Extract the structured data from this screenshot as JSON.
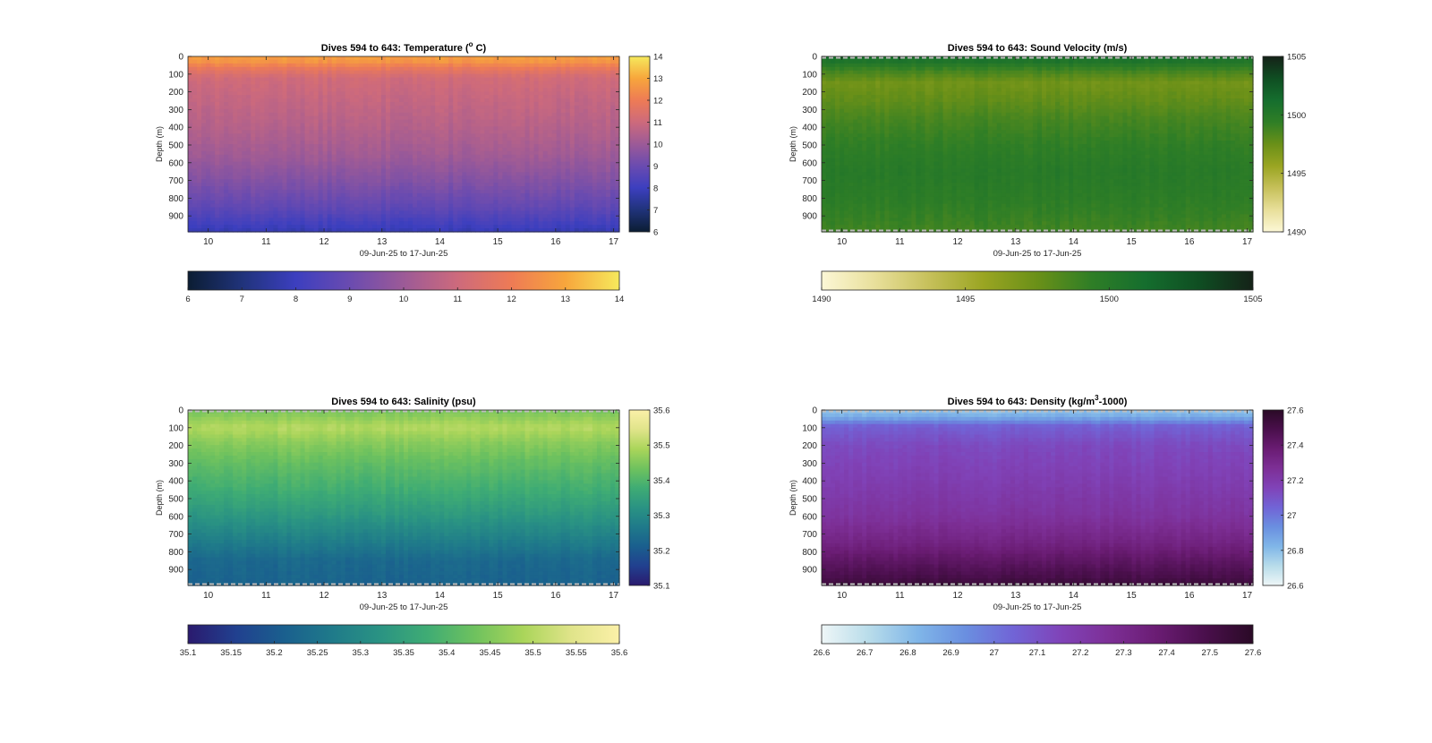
{
  "chart_data": [
    {
      "type": "heatmap",
      "title": "Dives 594 to 643: Temperature (",
      "title_sup": "o",
      "title_suffix": " C)",
      "xlabel": "09-Jun-25 to 17-Jun-25",
      "ylabel": "Depth (m)",
      "x_ticks": [
        "10",
        "11",
        "12",
        "13",
        "14",
        "15",
        "16",
        "17"
      ],
      "xlim": [
        9.65,
        17.1
      ],
      "y_ticks": [
        "0",
        "100",
        "200",
        "300",
        "400",
        "500",
        "600",
        "700",
        "800",
        "900"
      ],
      "ylim": [
        0,
        990
      ],
      "y_reversed": true,
      "dashed_bounds": false,
      "colorbar_vertical": {
        "ticks": [
          "14",
          "13",
          "12",
          "11",
          "10",
          "9",
          "8",
          "7",
          "6"
        ],
        "range": [
          6,
          14
        ]
      },
      "colorbar_horizontal": {
        "ticks": [
          "6",
          "7",
          "8",
          "9",
          "10",
          "11",
          "12",
          "13",
          "14"
        ],
        "range": [
          6,
          14
        ]
      },
      "colormap": [
        "#0b1d33",
        "#20337a",
        "#3c3fbf",
        "#6a4bb0",
        "#9c5a97",
        "#cd6a7c",
        "#ee7b55",
        "#f7a63c",
        "#f6e95c"
      ],
      "depth_profile": [
        {
          "depth": 0,
          "value": 12.8
        },
        {
          "depth": 30,
          "value": 12.6
        },
        {
          "depth": 70,
          "value": 11.8
        },
        {
          "depth": 120,
          "value": 11.1
        },
        {
          "depth": 250,
          "value": 10.8
        },
        {
          "depth": 400,
          "value": 10.5
        },
        {
          "depth": 550,
          "value": 10.1
        },
        {
          "depth": 700,
          "value": 9.5
        },
        {
          "depth": 850,
          "value": 8.8
        },
        {
          "depth": 950,
          "value": 8.1
        },
        {
          "depth": 990,
          "value": 7.8
        }
      ]
    },
    {
      "type": "heatmap",
      "title": "Dives 594 to 643: Sound Velocity (m/s)",
      "title_sup": "",
      "title_suffix": "",
      "xlabel": "09-Jun-25 to 17-Jun-25",
      "ylabel": "Depth (m)",
      "x_ticks": [
        "10",
        "11",
        "12",
        "13",
        "14",
        "15",
        "16",
        "17"
      ],
      "xlim": [
        9.65,
        17.1
      ],
      "y_ticks": [
        "0",
        "100",
        "200",
        "300",
        "400",
        "500",
        "600",
        "700",
        "800",
        "900"
      ],
      "ylim": [
        0,
        990
      ],
      "y_reversed": true,
      "dashed_bounds": true,
      "colorbar_vertical": {
        "ticks": [
          "1505",
          "1500",
          "1495",
          "1490"
        ],
        "range": [
          1490,
          1505
        ]
      },
      "colorbar_horizontal": {
        "ticks": [
          "1490",
          "1495",
          "1500",
          "1505"
        ],
        "range": [
          1490,
          1505
        ]
      },
      "colormap": [
        "#fcf7d6",
        "#e8df9a",
        "#c6c05a",
        "#9aa522",
        "#6a9018",
        "#2f7e26",
        "#156e2e",
        "#0f4e22",
        "#152218"
      ],
      "depth_profile": [
        {
          "depth": 0,
          "value": 1500.8
        },
        {
          "depth": 30,
          "value": 1500.5
        },
        {
          "depth": 80,
          "value": 1498.8
        },
        {
          "depth": 150,
          "value": 1497.2
        },
        {
          "depth": 250,
          "value": 1497.8
        },
        {
          "depth": 350,
          "value": 1498.6
        },
        {
          "depth": 500,
          "value": 1499.4
        },
        {
          "depth": 650,
          "value": 1499.9
        },
        {
          "depth": 800,
          "value": 1499.6
        },
        {
          "depth": 900,
          "value": 1499.2
        },
        {
          "depth": 990,
          "value": 1498.8
        }
      ]
    },
    {
      "type": "heatmap",
      "title": "Dives 594 to 643: Salinity (psu)",
      "title_sup": "",
      "title_suffix": "",
      "xlabel": "09-Jun-25 to 17-Jun-25",
      "ylabel": "Depth (m)",
      "x_ticks": [
        "10",
        "11",
        "12",
        "13",
        "14",
        "15",
        "16",
        "17"
      ],
      "xlim": [
        9.65,
        17.1
      ],
      "y_ticks": [
        "0",
        "100",
        "200",
        "300",
        "400",
        "500",
        "600",
        "700",
        "800",
        "900"
      ],
      "ylim": [
        0,
        990
      ],
      "y_reversed": true,
      "dashed_bounds": true,
      "colorbar_vertical": {
        "ticks": [
          "35.6",
          "35.5",
          "35.4",
          "35.3",
          "35.2",
          "35.1"
        ],
        "range": [
          35.1,
          35.6
        ]
      },
      "colorbar_horizontal": {
        "ticks": [
          "35.1",
          "35.15",
          "35.2",
          "35.25",
          "35.3",
          "35.35",
          "35.4",
          "35.45",
          "35.5",
          "35.55",
          "35.6"
        ],
        "range": [
          35.1,
          35.6
        ]
      },
      "colormap": [
        "#2a1a6e",
        "#21408f",
        "#1a5f8e",
        "#1f7a8a",
        "#2a9383",
        "#3fac74",
        "#6fc25e",
        "#aad55a",
        "#e0e48a",
        "#fbf0a8"
      ],
      "depth_profile": [
        {
          "depth": 0,
          "value": 35.44
        },
        {
          "depth": 50,
          "value": 35.47
        },
        {
          "depth": 100,
          "value": 35.5
        },
        {
          "depth": 180,
          "value": 35.46
        },
        {
          "depth": 300,
          "value": 35.42
        },
        {
          "depth": 450,
          "value": 35.38
        },
        {
          "depth": 600,
          "value": 35.33
        },
        {
          "depth": 750,
          "value": 35.27
        },
        {
          "depth": 850,
          "value": 35.23
        },
        {
          "depth": 990,
          "value": 35.22
        }
      ]
    },
    {
      "type": "heatmap",
      "title": "Dives 594 to 643: Density (kg/m",
      "title_sup": "3",
      "title_suffix": "-1000)",
      "xlabel": "09-Jun-25 to 17-Jun-25",
      "ylabel": "Depth (m)",
      "x_ticks": [
        "10",
        "11",
        "12",
        "13",
        "14",
        "15",
        "16",
        "17"
      ],
      "xlim": [
        9.65,
        17.1
      ],
      "y_ticks": [
        "0",
        "100",
        "200",
        "300",
        "400",
        "500",
        "600",
        "700",
        "800",
        "900"
      ],
      "ylim": [
        0,
        990
      ],
      "y_reversed": true,
      "dashed_bounds": true,
      "colorbar_vertical": {
        "ticks": [
          "27.6",
          "27.4",
          "27.2",
          "27",
          "26.8",
          "26.6"
        ],
        "range": [
          26.6,
          27.6
        ]
      },
      "colorbar_horizontal": {
        "ticks": [
          "26.6",
          "26.7",
          "26.8",
          "26.9",
          "27",
          "27.1",
          "27.2",
          "27.3",
          "27.4",
          "27.5",
          "27.6"
        ],
        "range": [
          26.6,
          27.6
        ]
      },
      "colormap": [
        "#eef6f7",
        "#b8dcea",
        "#80b6e8",
        "#6a8fe0",
        "#7164d6",
        "#8043b8",
        "#7d2f96",
        "#6a1c73",
        "#4a0f4c",
        "#2a0a26"
      ],
      "depth_profile": [
        {
          "depth": 0,
          "value": 26.78
        },
        {
          "depth": 40,
          "value": 26.85
        },
        {
          "depth": 90,
          "value": 27.05
        },
        {
          "depth": 200,
          "value": 27.13
        },
        {
          "depth": 400,
          "value": 27.18
        },
        {
          "depth": 600,
          "value": 27.24
        },
        {
          "depth": 750,
          "value": 27.33
        },
        {
          "depth": 850,
          "value": 27.42
        },
        {
          "depth": 950,
          "value": 27.5
        },
        {
          "depth": 990,
          "value": 27.55
        }
      ]
    }
  ]
}
